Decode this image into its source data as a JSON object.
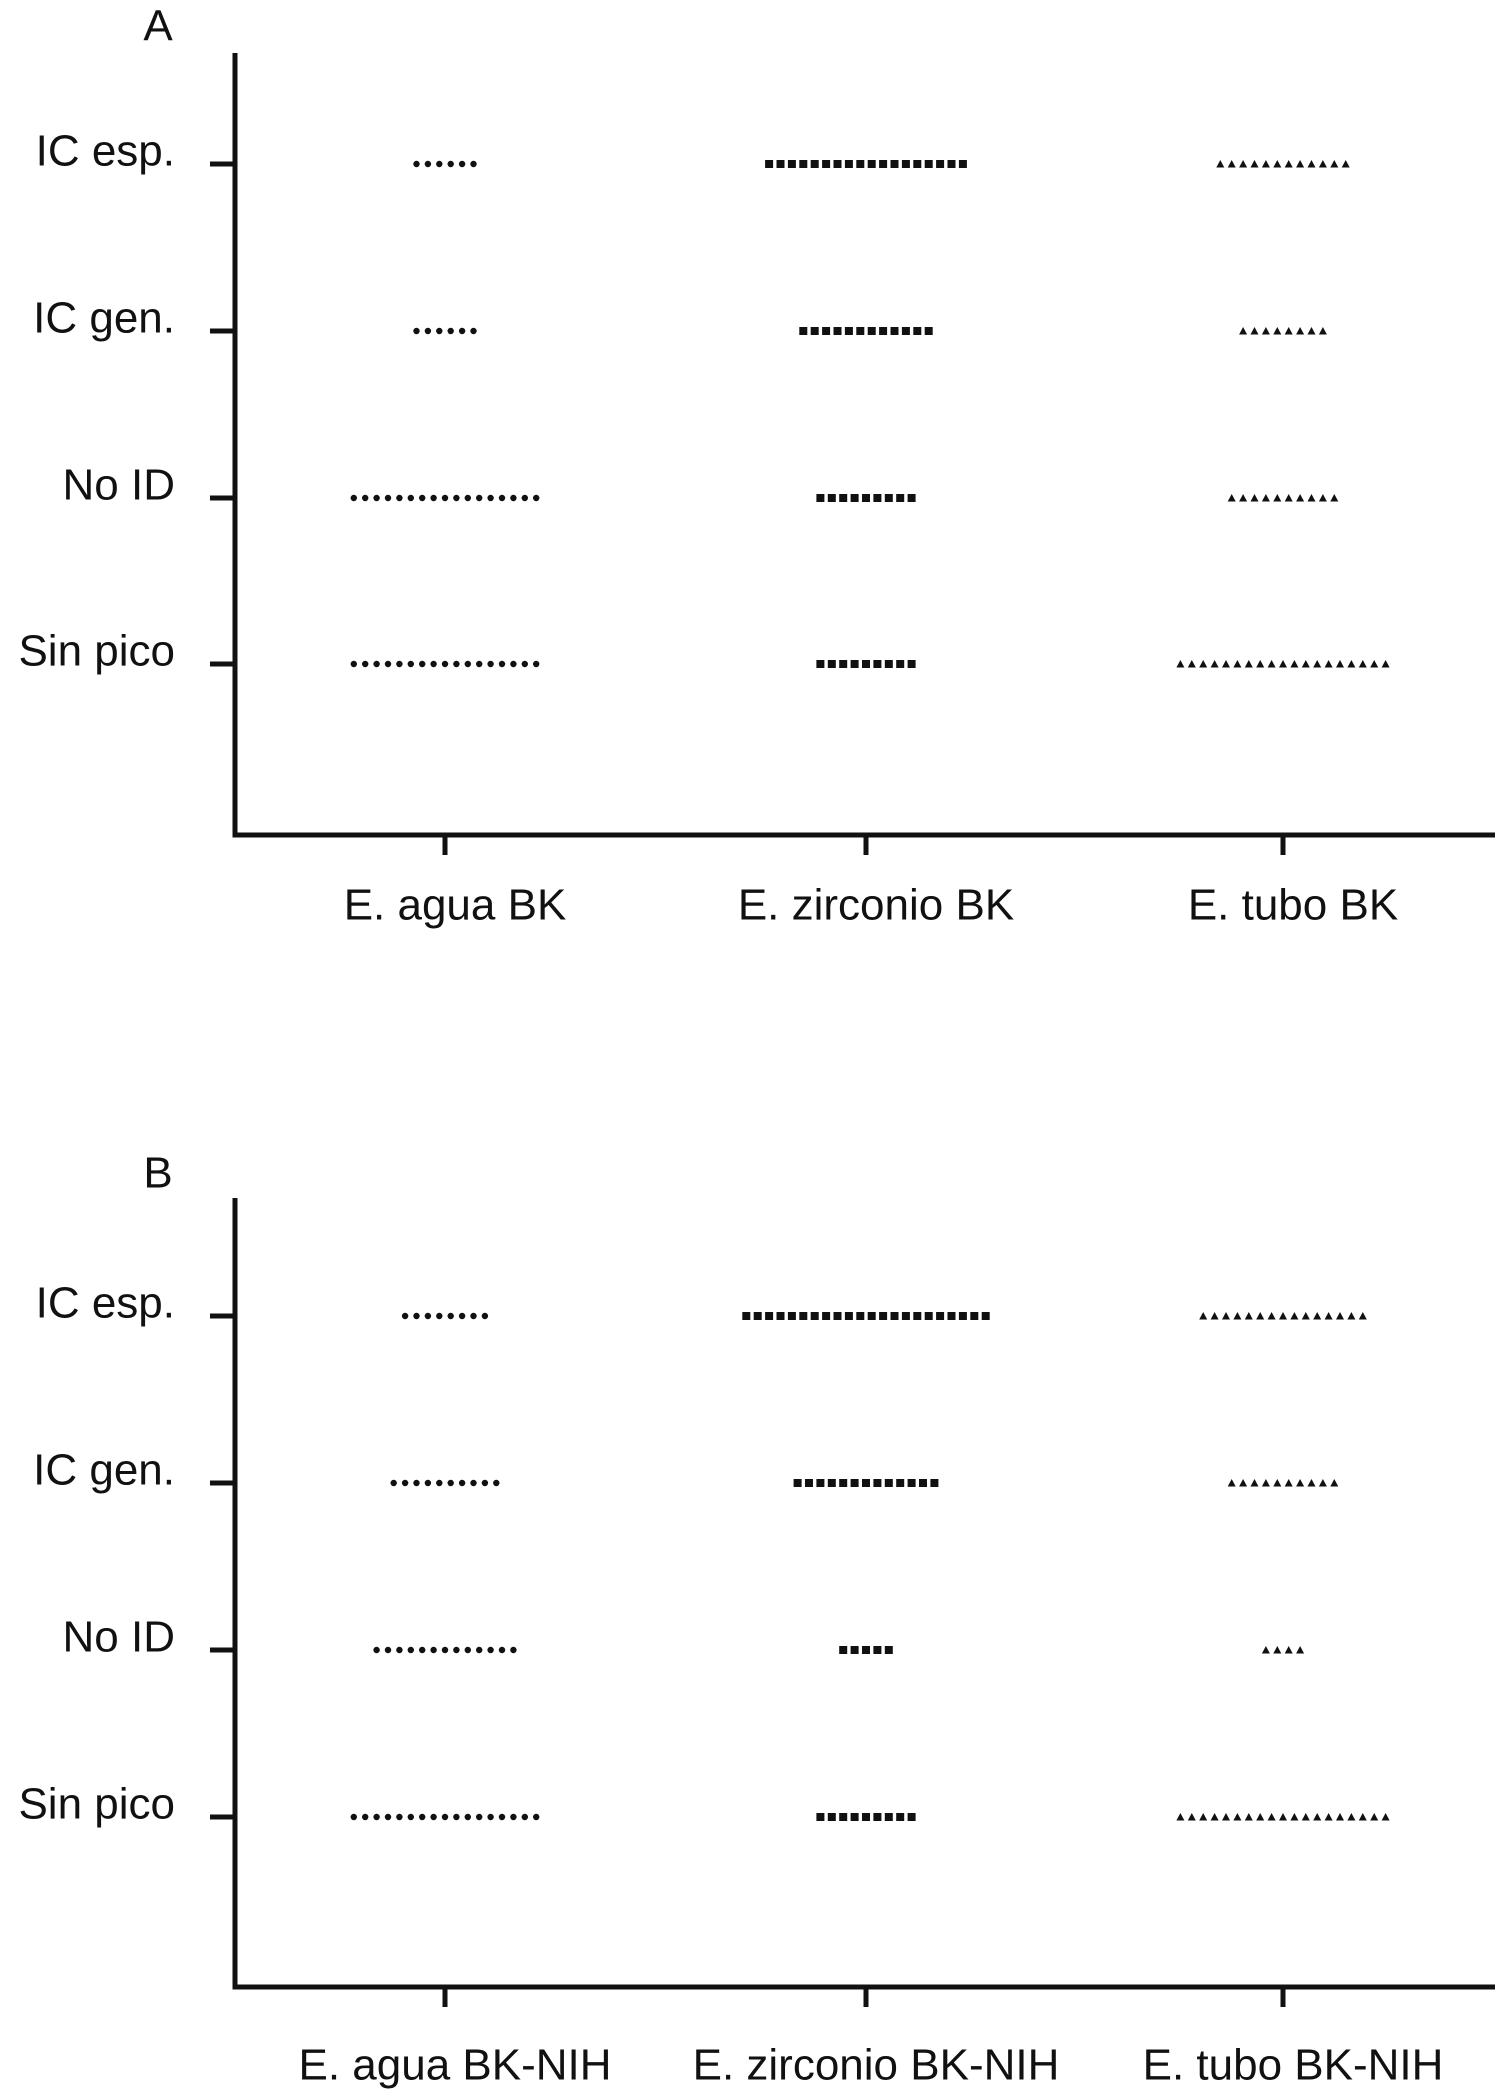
{
  "chart_data": [
    {
      "type": "dot",
      "title": "A",
      "categories": [
        "E. agua BK",
        "E. zirconio BK",
        "E. tubo BK"
      ],
      "rows": [
        "IC esp.",
        "IC gen.",
        "No ID",
        "Sin pico"
      ],
      "markers": [
        "circle",
        "square",
        "triangle"
      ],
      "color": "#111111",
      "values": [
        [
          6,
          6,
          17,
          17
        ],
        [
          18,
          12,
          9,
          9
        ],
        [
          12,
          8,
          10,
          19
        ]
      ]
    },
    {
      "type": "dot",
      "title": "B",
      "categories": [
        "E. agua BK-NIH",
        "E. zirconio BK-NIH",
        "E. tubo BK-NIH"
      ],
      "rows": [
        "IC esp.",
        "IC gen.",
        "No ID",
        "Sin pico"
      ],
      "markers": [
        "circle",
        "square",
        "triangle"
      ],
      "color": "#111111",
      "values": [
        [
          8,
          10,
          13,
          17
        ],
        [
          22,
          13,
          5,
          9
        ],
        [
          15,
          10,
          4,
          19
        ]
      ]
    }
  ]
}
